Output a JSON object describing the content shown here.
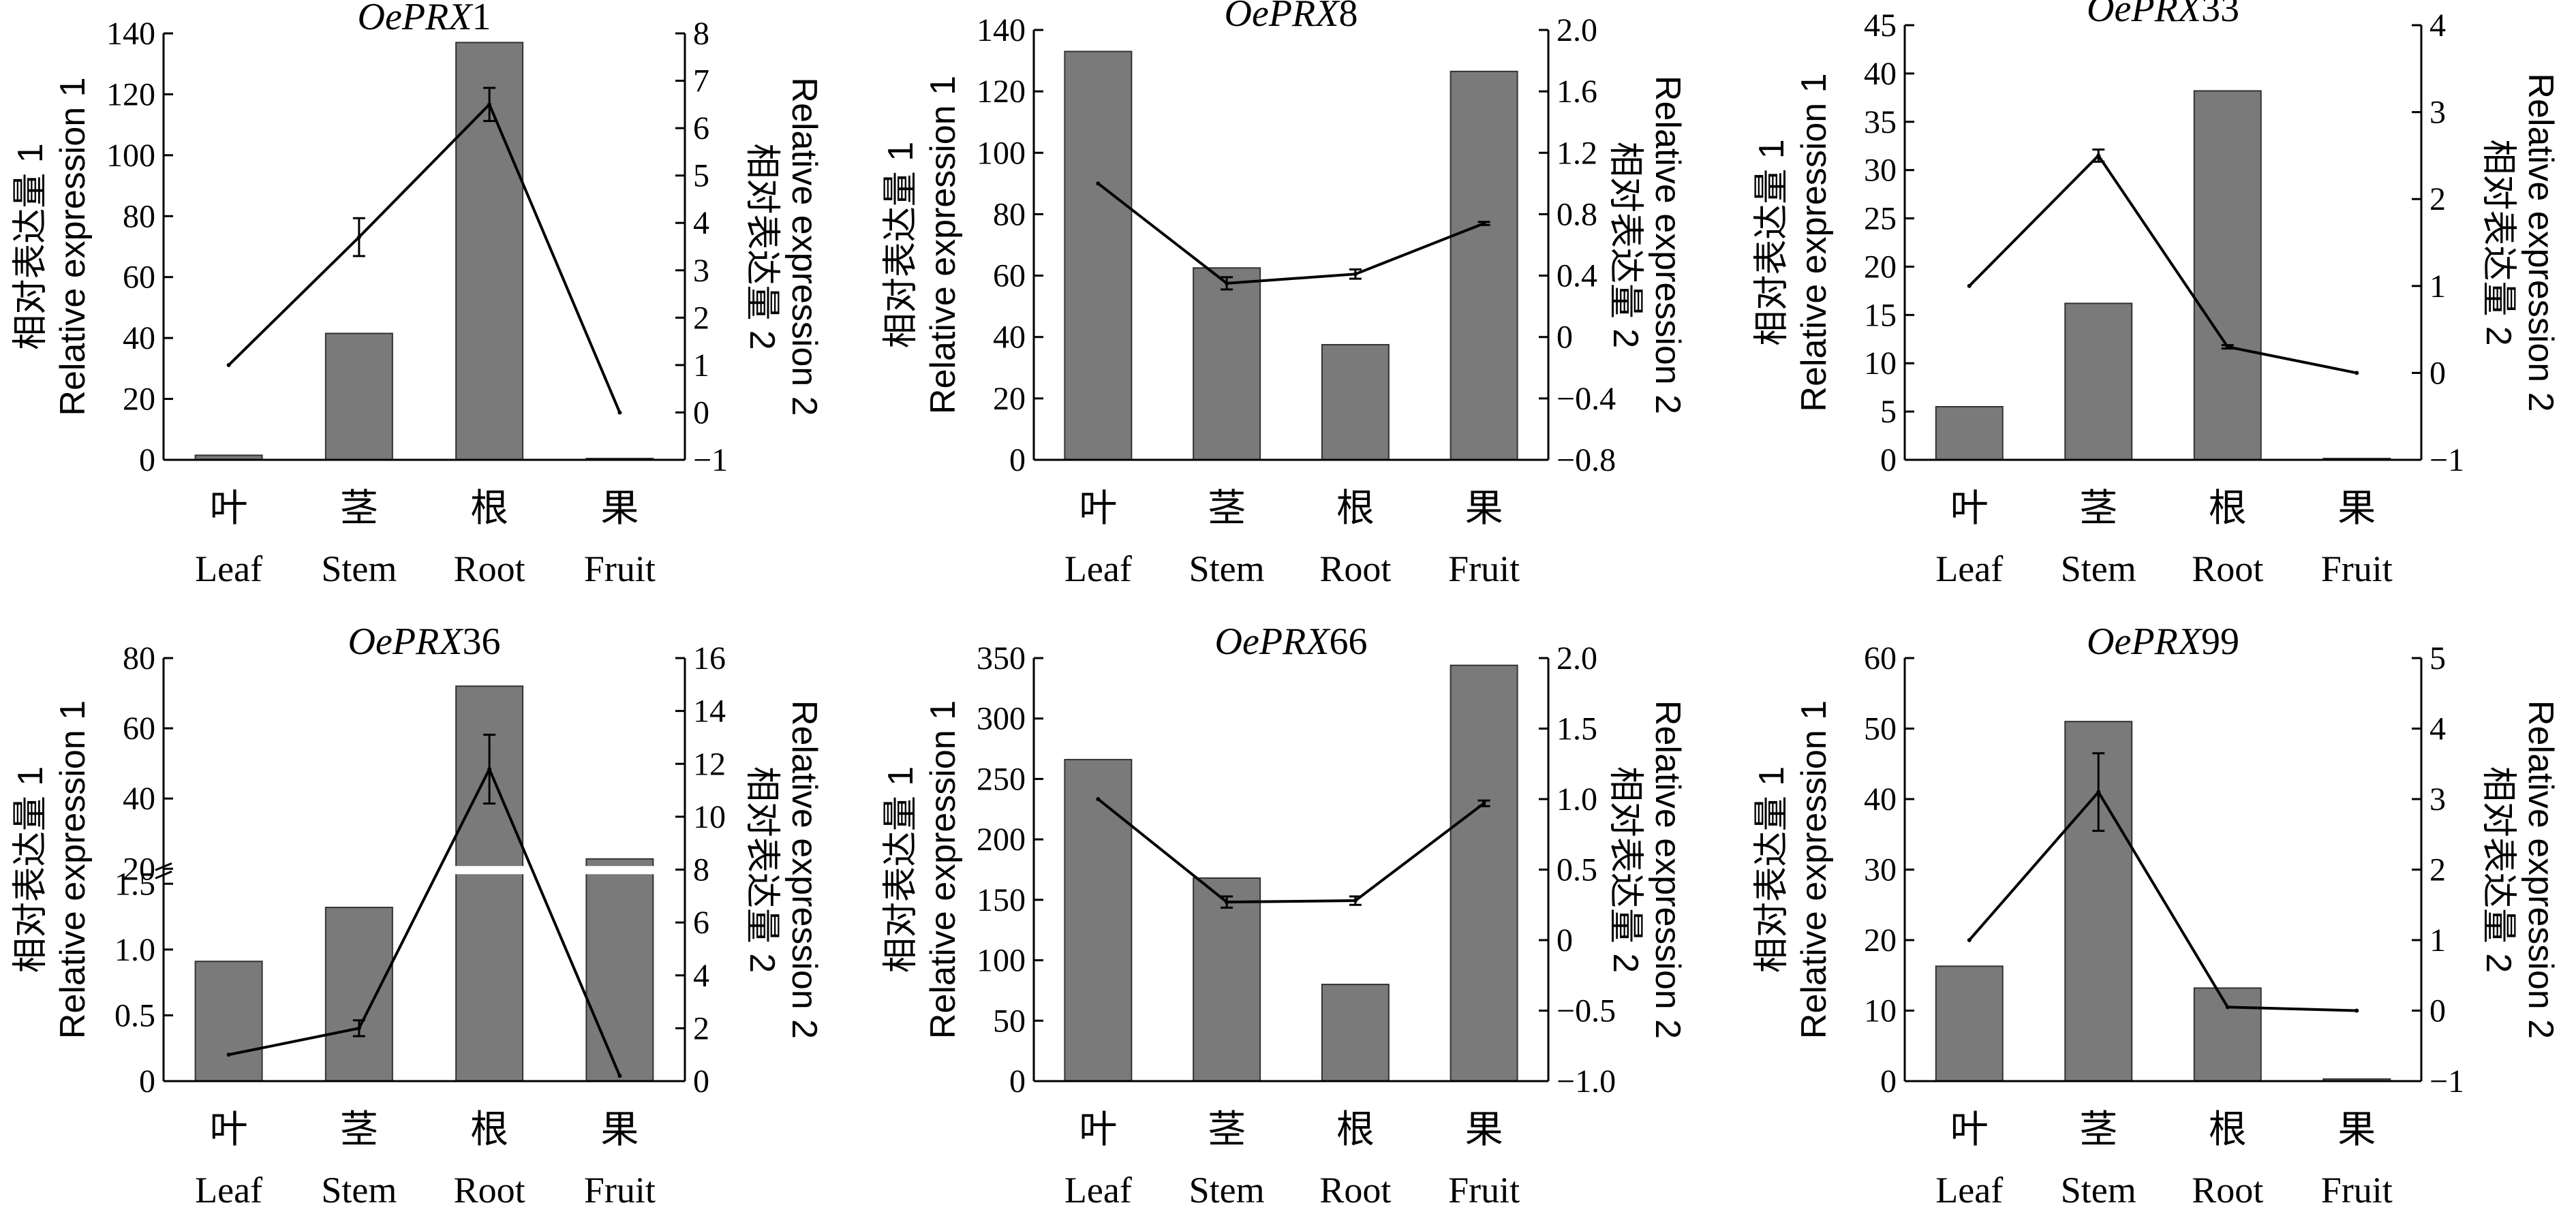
{
  "colors": {
    "bar": "#7a7a7a",
    "bar_edge": "#333333",
    "line": "#000000",
    "axis": "#000000"
  },
  "category_labels_cn": [
    "叶",
    "茎",
    "根",
    "果"
  ],
  "category_labels_en": [
    "Leaf",
    "Stem",
    "Root",
    "Fruit"
  ],
  "ylabel1": {
    "cn": "相对表达量 1",
    "en": "Relative expression 1"
  },
  "ylabel2": {
    "cn": "相对表达量 2",
    "en": "Relative expression 2"
  },
  "chart_data": [
    {
      "type": "bar+line",
      "title_italic": "OePRX",
      "title_num": "1",
      "categories": [
        "Leaf",
        "Stem",
        "Root",
        "Fruit"
      ],
      "left_axis": {
        "min": 0,
        "max": 140,
        "step": 20,
        "ticks": [
          "0",
          "20",
          "40",
          "60",
          "80",
          "100",
          "120",
          "140"
        ]
      },
      "right_axis": {
        "min": -1,
        "max": 8,
        "step": 1,
        "ticks": [
          "−1",
          "0",
          "1",
          "2",
          "3",
          "4",
          "5",
          "6",
          "7",
          "8"
        ]
      },
      "bars": [
        1.5,
        41.5,
        137,
        0
      ],
      "bar_err": [
        0,
        0,
        0,
        0
      ],
      "line": [
        1.0,
        3.7,
        6.5,
        0.0
      ],
      "line_err": [
        0,
        0.4,
        0.35,
        0
      ]
    },
    {
      "type": "bar+line",
      "title_italic": "OePRX",
      "title_num": "8",
      "categories": [
        "Leaf",
        "Stem",
        "Root",
        "Fruit"
      ],
      "left_axis": {
        "min": 0,
        "max": 140,
        "step": 20,
        "ticks": [
          "0",
          "20",
          "40",
          "60",
          "80",
          "100",
          "120",
          "140"
        ]
      },
      "right_axis": {
        "min": -0.8,
        "max": 2.0,
        "step": 0.4,
        "ticks": [
          "−0.8",
          "−0.4",
          "0",
          "0.4",
          "0.8",
          "1.2",
          "1.6",
          "2.0"
        ]
      },
      "bars": [
        133,
        62.5,
        37.5,
        126.5
      ],
      "bar_err": [
        0,
        0,
        0,
        0
      ],
      "line": [
        1.0,
        0.35,
        0.41,
        0.74
      ],
      "line_err": [
        0,
        0.04,
        0.03,
        0.01
      ]
    },
    {
      "type": "bar+line",
      "title_italic": "OePRX",
      "title_num": "33",
      "categories": [
        "Leaf",
        "Stem",
        "Root",
        "Fruit"
      ],
      "left_axis": {
        "min": 0,
        "max": 45,
        "step": 5,
        "ticks": [
          "0",
          "5",
          "10",
          "15",
          "20",
          "25",
          "30",
          "35",
          "40",
          "45"
        ]
      },
      "right_axis": {
        "min": -1,
        "max": 4,
        "step": 1,
        "ticks": [
          "−1",
          "0",
          "1",
          "2",
          "3",
          "4"
        ]
      },
      "bars": [
        5.5,
        16.2,
        38.2,
        0.1
      ],
      "bar_err": [
        0,
        0,
        0,
        0
      ],
      "line": [
        1.0,
        2.5,
        0.3,
        0.0
      ],
      "line_err": [
        0,
        0.07,
        0.02,
        0
      ]
    },
    {
      "type": "bar+line",
      "title_italic": "OePRX",
      "title_num": "36",
      "categories": [
        "Leaf",
        "Stem",
        "Root",
        "Fruit"
      ],
      "left_axis_broken": true,
      "left_axis_lower": {
        "min": 0,
        "max": 1.5,
        "ticks": [
          "0",
          "0.5",
          "1.0",
          "1.5"
        ]
      },
      "left_axis_upper": {
        "min": 20,
        "max": 80,
        "ticks": [
          "20",
          "40",
          "60",
          "80"
        ]
      },
      "right_axis": {
        "min": 0,
        "max": 16,
        "step": 2,
        "ticks": [
          "0",
          "2",
          "4",
          "6",
          "8",
          "10",
          "12",
          "14",
          "16"
        ]
      },
      "bars": [
        0.91,
        1.32,
        72,
        22.8
      ],
      "bar_err": [
        0,
        0,
        0,
        0
      ],
      "line": [
        1.0,
        2.0,
        11.8,
        0.2
      ],
      "line_err": [
        0,
        0.3,
        1.3,
        0
      ]
    },
    {
      "type": "bar+line",
      "title_italic": "OePRX",
      "title_num": "66",
      "categories": [
        "Leaf",
        "Stem",
        "Root",
        "Fruit"
      ],
      "left_axis": {
        "min": 0,
        "max": 350,
        "step": 50,
        "ticks": [
          "0",
          "50",
          "100",
          "150",
          "200",
          "250",
          "300",
          "350"
        ]
      },
      "right_axis": {
        "min": -1.0,
        "max": 2.0,
        "step": 0.5,
        "ticks": [
          "−1.0",
          "−0.5",
          "0",
          "0.5",
          "1.0",
          "1.5",
          "2.0"
        ]
      },
      "bars": [
        266,
        168,
        80,
        344
      ],
      "bar_err": [
        0,
        0,
        0,
        0
      ],
      "line": [
        1.0,
        0.27,
        0.28,
        0.97
      ],
      "line_err": [
        0,
        0.04,
        0.03,
        0.02
      ]
    },
    {
      "type": "bar+line",
      "title_italic": "OePRX",
      "title_num": "99",
      "categories": [
        "Leaf",
        "Stem",
        "Root",
        "Fruit"
      ],
      "left_axis": {
        "min": 0,
        "max": 60,
        "step": 10,
        "ticks": [
          "0",
          "10",
          "20",
          "30",
          "40",
          "50",
          "60"
        ]
      },
      "right_axis": {
        "min": -1,
        "max": 5,
        "step": 1,
        "ticks": [
          "−1",
          "0",
          "1",
          "2",
          "3",
          "4",
          "5"
        ]
      },
      "bars": [
        16.3,
        51,
        13.2,
        0.3
      ],
      "bar_err": [
        0,
        0,
        0,
        0
      ],
      "line": [
        1.0,
        3.1,
        0.05,
        0.0
      ],
      "line_err": [
        0,
        0.55,
        0,
        0
      ]
    }
  ]
}
